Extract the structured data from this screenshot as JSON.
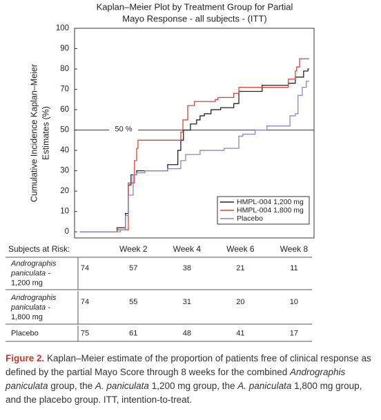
{
  "chart_data": {
    "type": "step",
    "title": [
      "Kaplan–Meier Plot by Treatment Group for Partial",
      "Mayo Response - all subjects - (ITT)"
    ],
    "y_label": [
      "Cumulative Incidence Kaplan–Meier",
      "Estimates (%)"
    ],
    "xlim": [
      -0.2,
      8.75
    ],
    "ylim": [
      -3,
      100
    ],
    "xticks": [
      {
        "value": 2,
        "label": "Week 2"
      },
      {
        "value": 4,
        "label": "Week 4"
      },
      {
        "value": 6,
        "label": "Week 6"
      },
      {
        "value": 8,
        "label": "Week 8"
      }
    ],
    "yticks": [
      0,
      10,
      20,
      30,
      40,
      50,
      60,
      70,
      80,
      90,
      100
    ],
    "reference_line": {
      "value": 50,
      "label": "50 %"
    },
    "legend": "lower right",
    "series": [
      {
        "name": "HMPL-004 1,200 mg",
        "color": "#222222",
        "x": [
          0,
          1.0,
          1.39,
          1.7,
          1.81,
          1.91,
          2.12,
          3.28,
          3.66,
          3.77,
          3.87,
          4.13,
          4.36,
          4.49,
          4.65,
          4.9,
          5.26,
          5.75,
          5.94,
          6.81,
          7.79,
          8.05,
          8.36,
          8.52,
          8.57
        ],
        "values": [
          0,
          0,
          2,
          9,
          23,
          28,
          30,
          33,
          40,
          45,
          50,
          53,
          55,
          57,
          58,
          60,
          61,
          63,
          69,
          72,
          73,
          76,
          79,
          80,
          80
        ]
      },
      {
        "name": "HMPL-004 1,800 mg",
        "color": "#d9432f",
        "x": [
          0,
          1.0,
          1.39,
          1.81,
          2.04,
          2.12,
          2.17,
          3.77,
          3.85,
          4.03,
          4.28,
          5.06,
          5.16,
          5.75,
          5.94,
          7.79,
          8.05,
          8.1,
          8.21,
          8.57
        ],
        "values": [
          0,
          0,
          1,
          24,
          35,
          41,
          45,
          49,
          55,
          62,
          64,
          65,
          66,
          68,
          71,
          75,
          79,
          81,
          85,
          85
        ]
      },
      {
        "name": "Placebo",
        "color": "#8a84c6",
        "x": [
          0,
          1.14,
          1.52,
          1.7,
          1.81,
          1.99,
          2.12,
          2.43,
          3.28,
          3.77,
          3.95,
          4.49,
          5.39,
          5.94,
          6.09,
          6.55,
          6.99,
          7.85,
          8.05,
          8.15,
          8.31,
          8.46,
          8.57
        ],
        "values": [
          0,
          0,
          1,
          8,
          18,
          28,
          29,
          30,
          31,
          35,
          38,
          40,
          41,
          47,
          48,
          50,
          52,
          57,
          58,
          67,
          71,
          74,
          74
        ]
      }
    ],
    "risk_table": {
      "label": "Subjects at Risk:",
      "rows": [
        {
          "name": [
            "Andrographis",
            "paniculata -",
            "1,200 mg"
          ],
          "counts": [
            74,
            57,
            38,
            21,
            11
          ]
        },
        {
          "name": [
            "Andrographis",
            "paniculata -",
            "1,800 mg"
          ],
          "counts": [
            74,
            55,
            31,
            20,
            10
          ]
        },
        {
          "name": [
            "Placebo"
          ],
          "counts": [
            75,
            61,
            48,
            41,
            17
          ]
        }
      ]
    }
  },
  "caption": {
    "label": "Figure 2.",
    "parts": [
      "Kaplan–Meier estimate of the proportion of patients free of clinical response as defined by the partial Mayo Score through 8 weeks for the combined ",
      "Andrographis paniculata",
      " group, the ",
      "A. paniculata",
      " 1,200 mg group, the ",
      "A. paniculata",
      " 1,800 mg group, and the placebo group. ITT, intention-to-treat."
    ]
  }
}
